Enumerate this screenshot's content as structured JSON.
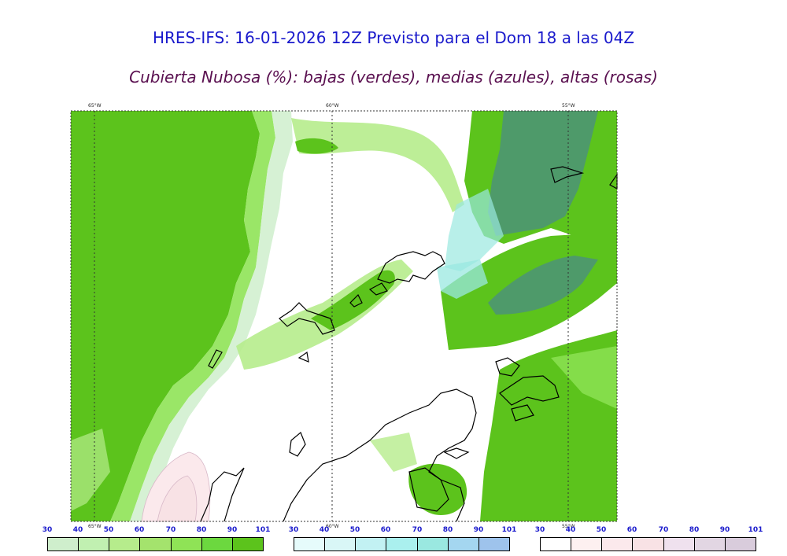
{
  "title": "HRES-IFS: 16-01-2026 12Z Previsto para el Dom 18 a las 04Z",
  "subtitle": "Cubierta Nubosa (%): bajas (verdes), medias (azules), altas (rosas)",
  "map": {
    "lon_labels": [
      "65°W",
      "60°W",
      "55°W"
    ],
    "bottom_lon_labels": [
      "65°W",
      "60°W",
      "55°W"
    ]
  },
  "colorbars": [
    {
      "name": "bajas",
      "ticks": [
        "30",
        "40",
        "50",
        "60",
        "70",
        "80",
        "90",
        "101"
      ],
      "colors": [
        "#cfeecc",
        "#c1f0b1",
        "#b6ec8c",
        "#a4e36d",
        "#8fe356",
        "#6cd83f",
        "#5cc31c"
      ]
    },
    {
      "name": "medias",
      "ticks": [
        "30",
        "40",
        "50",
        "60",
        "70",
        "80",
        "90",
        "101"
      ],
      "colors": [
        "#e6fbfb",
        "#d9f6f6",
        "#c2f1f3",
        "#aaf0ee",
        "#9ae8e0",
        "#a4d6f0",
        "#9ec3ec"
      ]
    },
    {
      "name": "altas",
      "ticks": [
        "30",
        "40",
        "50",
        "60",
        "70",
        "80",
        "90",
        "101"
      ],
      "colors": [
        "#ffffff",
        "#fdf0f0",
        "#fbe9ec",
        "#f8e2e5",
        "#efe1ee",
        "#e2d6e3",
        "#d9ccdc"
      ]
    }
  ]
}
